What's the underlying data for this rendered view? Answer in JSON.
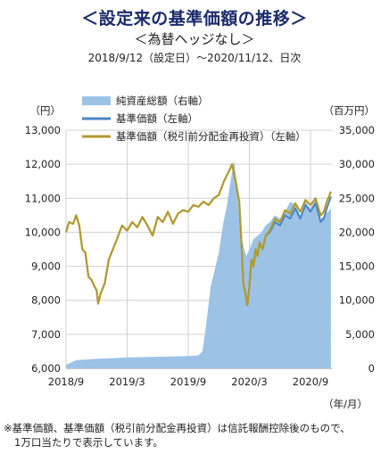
{
  "header": {
    "title": "＜設定来の基準価額の推移＞",
    "subtitle": "＜為替ヘッジなし＞",
    "period": "2018/9/12（設定日）～2020/11/12、日次"
  },
  "footnote": {
    "line1": "※基準価額、基準価額（税引前分配金再投資）は信託報酬控除後のもので、",
    "line2": "1万口当たりで表示しています。"
  },
  "colors": {
    "assets_fill": "#9cc3e6",
    "nav_line": "#4a86c6",
    "nav_reinvest_line": "#b39a2c",
    "grid": "#d0d0d0"
  },
  "chart_data": {
    "type": "line",
    "left_unit": "（円）",
    "right_unit": "（百万円）",
    "x_unit": "（年/月）",
    "y_left_range": [
      6000,
      13000
    ],
    "y_right_range": [
      0,
      35000
    ],
    "y_left_ticks": [
      "6,000",
      "7,000",
      "8,000",
      "9,000",
      "10,000",
      "11,000",
      "12,000",
      "13,000"
    ],
    "y_right_ticks": [
      "0",
      "5,000",
      "10,000",
      "15,000",
      "20,000",
      "25,000",
      "30,000",
      "35,000"
    ],
    "x_range_months": [
      0,
      26.1
    ],
    "x_ticks": [
      {
        "label": "2018/9",
        "t": 0
      },
      {
        "label": "2019/3",
        "t": 6
      },
      {
        "label": "2019/9",
        "t": 12
      },
      {
        "label": "2020/3",
        "t": 18
      },
      {
        "label": "2020/9",
        "t": 24
      }
    ],
    "legend": [
      "純資産総額（右軸）",
      "基準価額（左軸）",
      "基準価額（税引前分配金再投資）（左軸）"
    ],
    "nav": [
      [
        0,
        10000
      ],
      [
        0.3,
        10300
      ],
      [
        0.7,
        10250
      ],
      [
        1.0,
        10500
      ],
      [
        1.3,
        10200
      ],
      [
        1.6,
        9500
      ],
      [
        1.9,
        9400
      ],
      [
        2.2,
        8700
      ],
      [
        2.5,
        8600
      ],
      [
        2.8,
        8400
      ],
      [
        3.0,
        8300
      ],
      [
        3.15,
        7900
      ],
      [
        3.4,
        8200
      ],
      [
        3.8,
        8500
      ],
      [
        4.2,
        9200
      ],
      [
        4.6,
        9500
      ],
      [
        5.0,
        9800
      ],
      [
        5.5,
        10200
      ],
      [
        6.0,
        10050
      ],
      [
        6.5,
        10300
      ],
      [
        7.0,
        10150
      ],
      [
        7.5,
        10450
      ],
      [
        8.0,
        10200
      ],
      [
        8.5,
        9900
      ],
      [
        9.0,
        10450
      ],
      [
        9.5,
        10300
      ],
      [
        10.0,
        10600
      ],
      [
        10.5,
        10250
      ],
      [
        11.0,
        10550
      ],
      [
        11.5,
        10650
      ],
      [
        12.0,
        10600
      ],
      [
        12.5,
        10800
      ],
      [
        13.0,
        10750
      ],
      [
        13.5,
        10900
      ],
      [
        14.0,
        10800
      ],
      [
        14.5,
        11000
      ],
      [
        15.0,
        11100
      ],
      [
        15.5,
        11500
      ],
      [
        16.0,
        11800
      ],
      [
        16.3,
        12000
      ],
      [
        16.6,
        11600
      ],
      [
        17.0,
        10900
      ],
      [
        17.2,
        9800
      ],
      [
        17.4,
        8500
      ],
      [
        17.6,
        8200
      ],
      [
        17.8,
        7850
      ],
      [
        18.0,
        8400
      ],
      [
        18.2,
        9200
      ],
      [
        18.4,
        9000
      ],
      [
        18.6,
        9500
      ],
      [
        18.8,
        9300
      ],
      [
        19.0,
        9700
      ],
      [
        19.3,
        9500
      ],
      [
        19.6,
        9900
      ],
      [
        20.0,
        10000
      ],
      [
        20.5,
        10300
      ],
      [
        21.0,
        10200
      ],
      [
        21.5,
        10500
      ],
      [
        22.0,
        10400
      ],
      [
        22.5,
        10700
      ],
      [
        23.0,
        10400
      ],
      [
        23.5,
        10800
      ],
      [
        24.0,
        10600
      ],
      [
        24.5,
        10850
      ],
      [
        25.0,
        10300
      ],
      [
        25.3,
        10400
      ],
      [
        25.6,
        10700
      ],
      [
        26.0,
        11050
      ]
    ],
    "nav_reinvest": [
      [
        0,
        10000
      ],
      [
        0.3,
        10300
      ],
      [
        0.7,
        10250
      ],
      [
        1.0,
        10500
      ],
      [
        1.3,
        10200
      ],
      [
        1.6,
        9500
      ],
      [
        1.9,
        9400
      ],
      [
        2.2,
        8700
      ],
      [
        2.5,
        8600
      ],
      [
        2.8,
        8400
      ],
      [
        3.0,
        8300
      ],
      [
        3.15,
        7900
      ],
      [
        3.4,
        8200
      ],
      [
        3.8,
        8500
      ],
      [
        4.2,
        9200
      ],
      [
        4.6,
        9500
      ],
      [
        5.0,
        9800
      ],
      [
        5.5,
        10200
      ],
      [
        6.0,
        10050
      ],
      [
        6.5,
        10300
      ],
      [
        7.0,
        10150
      ],
      [
        7.5,
        10450
      ],
      [
        8.0,
        10200
      ],
      [
        8.5,
        9900
      ],
      [
        9.0,
        10450
      ],
      [
        9.5,
        10300
      ],
      [
        10.0,
        10600
      ],
      [
        10.5,
        10250
      ],
      [
        11.0,
        10550
      ],
      [
        11.5,
        10650
      ],
      [
        12.0,
        10600
      ],
      [
        12.5,
        10800
      ],
      [
        13.0,
        10750
      ],
      [
        13.5,
        10900
      ],
      [
        14.0,
        10800
      ],
      [
        14.5,
        11000
      ],
      [
        15.0,
        11100
      ],
      [
        15.5,
        11500
      ],
      [
        16.0,
        11800
      ],
      [
        16.3,
        12000
      ],
      [
        16.6,
        11600
      ],
      [
        17.0,
        10900
      ],
      [
        17.2,
        9800
      ],
      [
        17.4,
        8500
      ],
      [
        17.6,
        8200
      ],
      [
        17.8,
        7850
      ],
      [
        18.0,
        8400
      ],
      [
        18.2,
        9200
      ],
      [
        18.4,
        9000
      ],
      [
        18.6,
        9500
      ],
      [
        18.8,
        9300
      ],
      [
        19.0,
        9700
      ],
      [
        19.3,
        9500
      ],
      [
        19.6,
        9900
      ],
      [
        20.0,
        10050
      ],
      [
        20.5,
        10400
      ],
      [
        21.0,
        10300
      ],
      [
        21.5,
        10650
      ],
      [
        22.0,
        10550
      ],
      [
        22.5,
        10850
      ],
      [
        23.0,
        10600
      ],
      [
        23.5,
        10950
      ],
      [
        24.0,
        10800
      ],
      [
        24.5,
        11000
      ],
      [
        25.0,
        10500
      ],
      [
        25.3,
        10600
      ],
      [
        25.6,
        10900
      ],
      [
        26.0,
        11200
      ]
    ],
    "net_assets": [
      [
        0,
        500
      ],
      [
        1,
        1200
      ],
      [
        3,
        1400
      ],
      [
        6,
        1600
      ],
      [
        9,
        1700
      ],
      [
        12,
        1800
      ],
      [
        13,
        1900
      ],
      [
        13.4,
        2500
      ],
      [
        13.8,
        7000
      ],
      [
        14.2,
        12000
      ],
      [
        14.6,
        14500
      ],
      [
        15.0,
        17000
      ],
      [
        15.4,
        21000
      ],
      [
        15.8,
        24000
      ],
      [
        16.2,
        28000
      ],
      [
        16.5,
        30500
      ],
      [
        16.8,
        26000
      ],
      [
        17.1,
        20000
      ],
      [
        17.4,
        18000
      ],
      [
        17.7,
        16500
      ],
      [
        18.0,
        17500
      ],
      [
        18.4,
        19000
      ],
      [
        18.8,
        19500
      ],
      [
        19.2,
        20000
      ],
      [
        19.6,
        21000
      ],
      [
        20.0,
        21500
      ],
      [
        20.5,
        22500
      ],
      [
        21.0,
        22000
      ],
      [
        21.5,
        23000
      ],
      [
        22.0,
        24500
      ],
      [
        22.5,
        24000
      ],
      [
        23.0,
        22500
      ],
      [
        23.5,
        24500
      ],
      [
        24.0,
        23500
      ],
      [
        24.5,
        25000
      ],
      [
        25.0,
        22000
      ],
      [
        25.4,
        22500
      ],
      [
        26.0,
        23500
      ]
    ]
  }
}
